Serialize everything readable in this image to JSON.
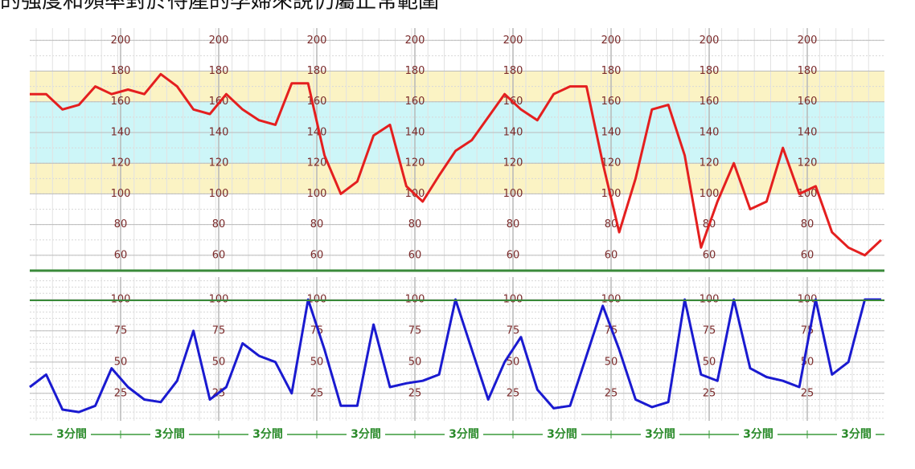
{
  "caption": "的強度和頻率對於待產的孕婦來說仍屬正常範圍",
  "chart_data": [
    {
      "type": "line",
      "title_none": null,
      "x": [
        0,
        0.5,
        1,
        1.5,
        2,
        2.5,
        3,
        3.5,
        4,
        4.5,
        5,
        5.5,
        6,
        6.5,
        7,
        7.5,
        8,
        8.5,
        9,
        9.5,
        10,
        10.5,
        11,
        11.5,
        12,
        12.5,
        13,
        13.5,
        14,
        14.5,
        15,
        15.5,
        16,
        16.5,
        17,
        17.5,
        18,
        18.5,
        19,
        19.5,
        20,
        20.5,
        21,
        21.5,
        22,
        22.5,
        23,
        23.5,
        24,
        24.5,
        25,
        25.5,
        26
      ],
      "xlim": [
        0,
        26.1
      ],
      "ylim": [
        50,
        208
      ],
      "yticks": [
        60,
        80,
        100,
        120,
        140,
        160,
        180,
        200
      ],
      "bands": [
        {
          "from": 100,
          "to": 120,
          "color": "#fbf3c4"
        },
        {
          "from": 120,
          "to": 160,
          "color": "#cdf6f8"
        },
        {
          "from": 160,
          "to": 180,
          "color": "#fbf3c4"
        }
      ],
      "grid": true,
      "series": [
        {
          "color": "#e41f1f",
          "values": [
            165,
            165,
            155,
            158,
            170,
            165,
            168,
            165,
            178,
            170,
            155,
            152,
            165,
            155,
            148,
            145,
            172,
            172,
            125,
            100,
            108,
            138,
            145,
            105,
            95,
            112,
            128,
            135,
            150,
            165,
            155,
            148,
            165,
            170,
            170,
            120,
            75,
            110,
            155,
            158,
            125,
            65,
            95,
            120,
            90,
            95,
            130,
            100,
            105,
            75,
            65,
            60,
            70
          ]
        }
      ]
    },
    {
      "type": "line",
      "x": [
        0,
        0.5,
        1,
        1.5,
        2,
        2.5,
        3,
        3.5,
        4,
        4.5,
        5,
        5.5,
        6,
        6.5,
        7,
        7.5,
        8,
        8.5,
        9,
        9.5,
        10,
        10.5,
        11,
        11.5,
        12,
        12.5,
        13,
        13.5,
        14,
        14.5,
        15,
        15.5,
        16,
        16.5,
        17,
        17.5,
        18,
        18.5,
        19,
        19.5,
        20,
        20.5,
        21,
        21.5,
        22,
        22.5,
        23,
        23.5,
        24,
        24.5,
        25,
        25.5,
        26
      ],
      "xlim": [
        0,
        26.1
      ],
      "ylim": [
        3,
        118
      ],
      "yticks": [
        25,
        50,
        75,
        100
      ],
      "grid": true,
      "time_label": "3分間",
      "series": [
        {
          "color": "#1a1ad0",
          "values": [
            30,
            40,
            12,
            10,
            15,
            45,
            30,
            20,
            18,
            35,
            75,
            20,
            30,
            65,
            55,
            50,
            25,
            100,
            60,
            15,
            15,
            80,
            30,
            33,
            35,
            40,
            100,
            60,
            20,
            50,
            70,
            28,
            13,
            15,
            55,
            95,
            60,
            20,
            14,
            18,
            100,
            40,
            35,
            100,
            45,
            38,
            35,
            30,
            100,
            40,
            50,
            100,
            100
          ]
        }
      ]
    }
  ]
}
